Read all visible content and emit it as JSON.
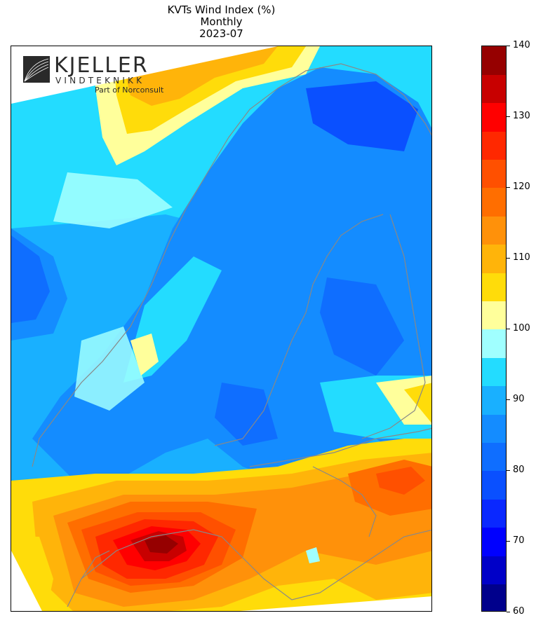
{
  "title": {
    "line1": "KVTs Wind Index (%)",
    "line2": "Monthly",
    "line3": "2023-07"
  },
  "logo": {
    "name": "KJELLER",
    "subname": "VINDTEKNIKK",
    "tagline": "Part of Norconsult"
  },
  "colorbar": {
    "min": 60,
    "max": 140,
    "step": 5,
    "tick_labels": [
      "60",
      "70",
      "80",
      "90",
      "100",
      "110",
      "120",
      "130",
      "140"
    ],
    "colors": [
      "#00008c",
      "#0000c8",
      "#0000ff",
      "#0a28ff",
      "#0a50ff",
      "#0f6eff",
      "#148cff",
      "#19b0ff",
      "#23dcff",
      "#a0ffff",
      "#ffff9b",
      "#ffdc0a",
      "#ffb40a",
      "#ff910a",
      "#ff6e00",
      "#ff5000",
      "#ff2800",
      "#ff0000",
      "#c80000",
      "#960000"
    ]
  },
  "map": {
    "background_blue": "#19b0ff",
    "coastline_color": "#888888"
  }
}
